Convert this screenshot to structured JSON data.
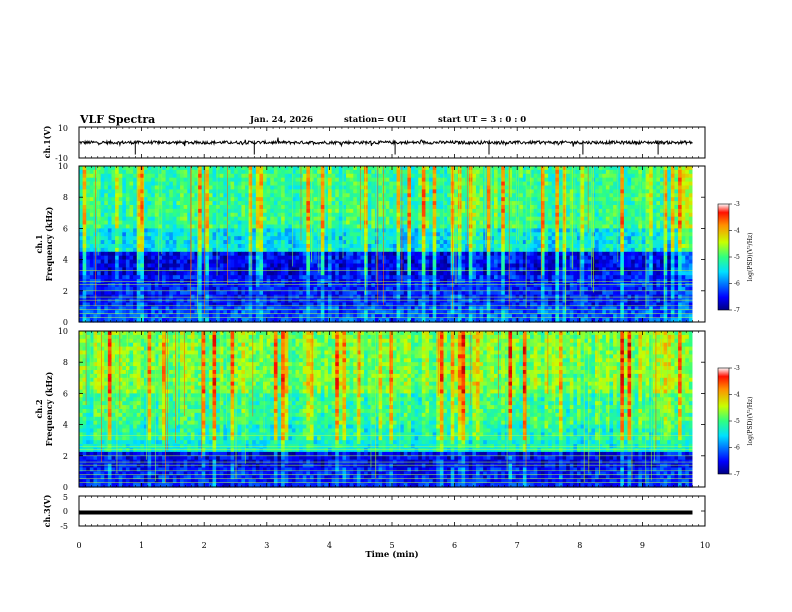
{
  "header": {
    "title": "VLF Spectra",
    "date": "Jan. 24, 2026",
    "station": "station= OUI",
    "start": "start  UT =   3  : 0   : 0"
  },
  "chart_data": [
    {
      "type": "line",
      "panel": "ch1-waveform",
      "ylabel": "ch.1(V)",
      "ylim": [
        -10,
        10
      ],
      "yticks": [
        "10",
        "-10"
      ],
      "description_values": {
        "baseline": 0,
        "noise_amplitude": 2,
        "spikes": [
          0.9,
          2.8,
          5.05,
          6.55,
          8.05,
          9.25
        ]
      }
    },
    {
      "type": "heatmap",
      "panel": "ch1-spectrogram",
      "ylabel": "Frequency  (kHz)",
      "channel_label": "ch.1",
      "ylim": [
        0,
        10
      ],
      "yticks": [
        "0",
        "2",
        "4",
        "6",
        "8",
        "10"
      ],
      "xlim": [
        0,
        10
      ],
      "colorbar": {
        "label": "log(PSD)(V²/Hz)",
        "range": [
          -7,
          -3
        ],
        "ticks": [
          "-3",
          "-4",
          "-5",
          "-6",
          "-7"
        ]
      }
    },
    {
      "type": "heatmap",
      "panel": "ch2-spectrogram",
      "ylabel": "Frequency  (kHz)",
      "channel_label": "ch.2",
      "ylim": [
        0,
        10
      ],
      "yticks": [
        "0",
        "2",
        "4",
        "6",
        "8",
        "10"
      ],
      "xlim": [
        0,
        10
      ],
      "colorbar": {
        "label": "log(PSD)(V²/Hz)",
        "range": [
          -7,
          -3
        ],
        "ticks": [
          "-3",
          "-4",
          "-5",
          "-6",
          "-7"
        ]
      }
    },
    {
      "type": "line",
      "panel": "ch3-waveform",
      "ylabel": "ch.3(V)",
      "ylim": [
        -5,
        5
      ],
      "yticks": [
        "5",
        "0",
        "-5"
      ],
      "description_values": {
        "constant": -0.5
      }
    }
  ],
  "xaxis": {
    "label": "Time  (min)",
    "range": [
      0,
      10
    ],
    "ticks": [
      "0",
      "1",
      "2",
      "3",
      "4",
      "5",
      "6",
      "7",
      "8",
      "9",
      "10"
    ]
  },
  "colors": {
    "axis": "#000000",
    "background": "#ffffff"
  }
}
